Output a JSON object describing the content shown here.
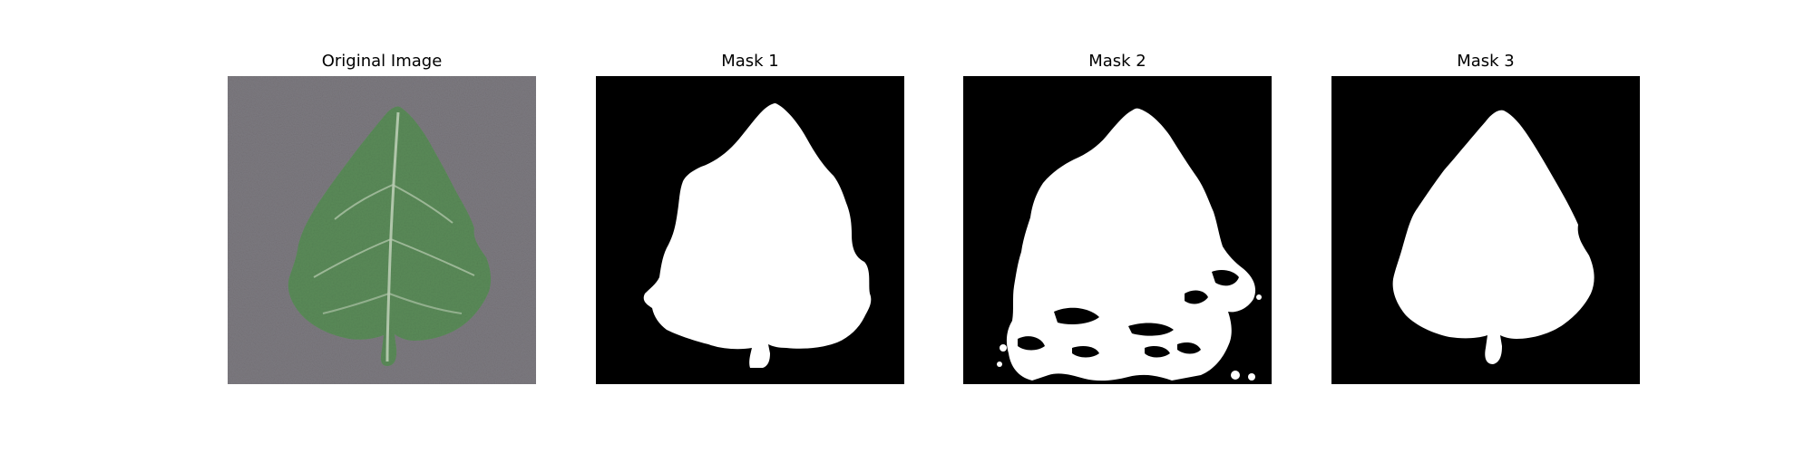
{
  "figure": {
    "panels": [
      {
        "title": "Original Image",
        "kind": "photo",
        "subject": "leaf-icon"
      },
      {
        "title": "Mask 1",
        "kind": "mask"
      },
      {
        "title": "Mask 2",
        "kind": "mask"
      },
      {
        "title": "Mask 3",
        "kind": "mask"
      }
    ],
    "colors": {
      "background_surface": "#7d7a80",
      "leaf": "#5a8a58",
      "leaf_vein": "#c7d6bf",
      "mask_bg": "#000000",
      "mask_fg": "#ffffff"
    }
  }
}
